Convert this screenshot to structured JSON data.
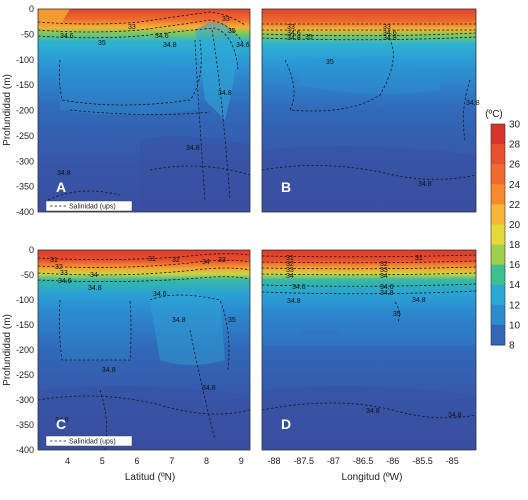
{
  "colorbar": {
    "title": "(ºC)",
    "ticks": [
      "30",
      "28",
      "26",
      "24",
      "22",
      "20",
      "18",
      "16",
      "14",
      "12",
      "10",
      "8"
    ],
    "values": [
      30,
      28,
      26,
      24,
      22,
      20,
      18,
      16,
      14,
      12,
      10,
      8
    ],
    "colors": [
      "#d7352b",
      "#e8502f",
      "#f06b2f",
      "#f58a2f",
      "#f5b735",
      "#e3d93b",
      "#9fd04d",
      "#3dbf8f",
      "#2aa9d6",
      "#2e8bd0",
      "#3366b8",
      "#3b4fa3"
    ]
  },
  "y_axis": {
    "label": "Profundidad (m)",
    "ticks": [
      "0",
      "-50",
      "-100",
      "-150",
      "-200",
      "-250",
      "-300",
      "-350",
      "-400"
    ]
  },
  "x_axis_lat": {
    "label": "Latitud (ºN)",
    "ticks": [
      "4",
      "5",
      "6",
      "7",
      "8",
      "9"
    ]
  },
  "x_axis_lon": {
    "label": "Longitud (ºW)",
    "ticks": [
      "-88",
      "-87.5",
      "-87",
      "-86.5",
      "-86",
      "-85.5",
      "-85"
    ]
  },
  "legend_label": "Salinidad (ups)",
  "chart_data": [
    {
      "panel": "A",
      "type": "heatmap",
      "xlabel": "",
      "ylabel": "Profundidad (m)",
      "xlim": [
        3.2,
        9.3
      ],
      "ylim": [
        -400,
        0
      ],
      "thermocline_depth": [
        -26,
        -28,
        -30,
        -28,
        -24,
        -20,
        -15,
        -10,
        -8,
        -20
      ],
      "contours": [
        {
          "label": "33",
          "depth": -18
        },
        {
          "label": "34.6",
          "depth": -38
        },
        {
          "label": "34.8",
          "depth": -52
        },
        {
          "label": "35",
          "depth": -90
        },
        {
          "label": "34.8",
          "depth": -275
        }
      ],
      "labels": [
        "34.6",
        "33",
        "35",
        "34.6",
        "34.8",
        "33",
        "35",
        "34.6",
        "34.8",
        "34.8",
        "34.8"
      ]
    },
    {
      "panel": "B",
      "type": "heatmap",
      "xlabel": "",
      "ylabel": "",
      "xlim": [
        -88.2,
        -84.6
      ],
      "ylim": [
        -400,
        0
      ],
      "thermocline_depth": [
        -30,
        -30,
        -30,
        -30,
        -30,
        -30,
        -30
      ],
      "contours": [
        {
          "label": "33",
          "depth": -18
        },
        {
          "label": "34.6",
          "depth": -32
        },
        {
          "label": "34.8",
          "depth": -40
        },
        {
          "label": "35",
          "depth": -70
        },
        {
          "label": "34.8",
          "depth": -300
        }
      ],
      "labels": [
        "33",
        "34.6",
        "34.8",
        "35",
        "33",
        "34.6",
        "34.8",
        "35",
        "34.8",
        "34.8"
      ]
    },
    {
      "panel": "C",
      "type": "heatmap",
      "xlabel": "Latitud (ºN)",
      "ylabel": "Profundidad (m)",
      "xlim": [
        3.2,
        9.3
      ],
      "ylim": [
        -400,
        0
      ],
      "thermocline_depth": [
        -25,
        -28,
        -30,
        -30,
        -28,
        -22,
        -18,
        -12,
        -10,
        -15
      ],
      "contours": [
        {
          "label": "32",
          "depth": -12
        },
        {
          "label": "33",
          "depth": -24
        },
        {
          "label": "34",
          "depth": -38
        },
        {
          "label": "34.6",
          "depth": -48
        },
        {
          "label": "34.8",
          "depth": -70
        },
        {
          "label": "35",
          "depth": -140
        },
        {
          "label": "34.8",
          "depth": -320
        }
      ],
      "labels": [
        "31",
        "32",
        "33",
        "34",
        "34.6",
        "31",
        "32",
        "33",
        "34.8",
        "34.6",
        "35",
        "34.8",
        "34.8",
        "34.8",
        "34.8",
        "34"
      ]
    },
    {
      "panel": "D",
      "type": "heatmap",
      "xlabel": "Longitud (ºW)",
      "ylabel": "",
      "xlim": [
        -88.2,
        -84.6
      ],
      "ylim": [
        -400,
        0
      ],
      "thermocline_depth": [
        -28,
        -28,
        -28,
        -28,
        -28,
        -28,
        -28
      ],
      "contours": [
        {
          "label": "31",
          "depth": -8
        },
        {
          "label": "32",
          "depth": -16
        },
        {
          "label": "33",
          "depth": -24
        },
        {
          "label": "34",
          "depth": -32
        },
        {
          "label": "34.6",
          "depth": -45
        },
        {
          "label": "34.8",
          "depth": -55
        },
        {
          "label": "35",
          "depth": -110
        },
        {
          "label": "34.8",
          "depth": -330
        }
      ],
      "labels": [
        "31",
        "32",
        "33",
        "34",
        "34.6",
        "31",
        "32",
        "33",
        "34",
        "34.6",
        "34.8",
        "35",
        "34.8",
        "34.8",
        "34.8",
        "34.8"
      ]
    }
  ]
}
